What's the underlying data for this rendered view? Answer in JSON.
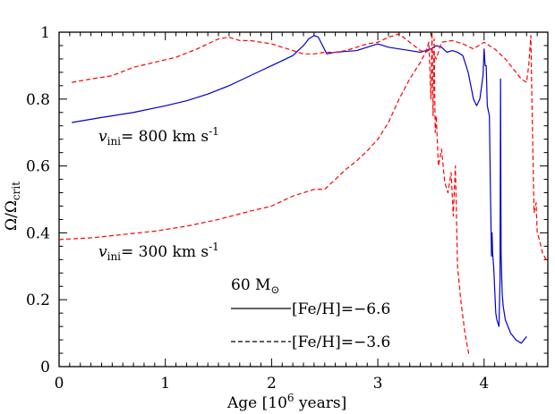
{
  "chart_data": {
    "type": "line",
    "xlabel_main": "Age [10",
    "xlabel_sup": "6",
    "xlabel_tail": " years]",
    "ylabel_main": "Ω/Ω",
    "ylabel_sub": "crit",
    "xlim": [
      0,
      4.6
    ],
    "ylim": [
      0,
      1.0
    ],
    "x_ticks": [
      0,
      1,
      2,
      3,
      4
    ],
    "x_tick_labels": [
      "0",
      "1",
      "2",
      "3",
      "4"
    ],
    "y_ticks": [
      0,
      0.2,
      0.4,
      0.6,
      0.8,
      1.0
    ],
    "y_tick_labels": [
      "0",
      "0.2",
      "0.4",
      "0.6",
      "0.8",
      "1"
    ],
    "annotations": {
      "vini_800": {
        "v": "v",
        "sub": "ini",
        "text": "= 800  km  s",
        "sup": "-1"
      },
      "vini_300": {
        "v": "v",
        "sub": "ini",
        "text": "= 300  km  s",
        "sup": "-1"
      },
      "mass": {
        "text": "60  M",
        "sub": "⊙"
      }
    },
    "legend": [
      {
        "label": "[Fe/H]=−6.6",
        "style": "solid"
      },
      {
        "label": "[Fe/H]=−3.6",
        "style": "dashed"
      }
    ],
    "series": [
      {
        "id": "feh66_800",
        "style": "solid",
        "color": "#0000cc",
        "x": [
          0.12,
          0.4,
          0.7,
          1.0,
          1.2,
          1.4,
          1.6,
          1.7,
          1.8,
          1.9,
          2.0,
          2.1,
          2.2,
          2.3,
          2.35,
          2.4,
          2.44,
          2.48,
          2.52,
          2.6,
          2.8,
          2.9,
          3.0,
          3.1,
          3.2,
          3.3,
          3.4,
          3.5,
          3.55,
          3.6,
          3.65,
          3.7,
          3.75,
          3.8,
          3.85,
          3.9,
          3.93,
          3.96,
          3.99,
          4.0,
          4.01,
          4.02,
          4.03,
          4.05,
          4.06,
          4.07,
          4.075,
          4.08,
          4.09,
          4.11,
          4.12,
          4.14,
          4.15,
          4.155,
          4.16,
          4.17,
          4.18,
          4.2,
          4.25,
          4.3,
          4.35,
          4.4
        ],
        "y": [
          0.73,
          0.745,
          0.76,
          0.78,
          0.795,
          0.815,
          0.84,
          0.855,
          0.87,
          0.885,
          0.9,
          0.915,
          0.93,
          0.96,
          0.98,
          0.99,
          0.985,
          0.96,
          0.935,
          0.94,
          0.945,
          0.955,
          0.965,
          0.955,
          0.95,
          0.945,
          0.94,
          0.95,
          0.96,
          0.955,
          0.94,
          0.945,
          0.94,
          0.93,
          0.88,
          0.8,
          0.78,
          0.8,
          0.87,
          0.95,
          0.9,
          0.9,
          0.78,
          0.75,
          0.52,
          0.33,
          0.4,
          0.34,
          0.3,
          0.16,
          0.14,
          0.12,
          0.26,
          0.86,
          0.34,
          0.22,
          0.18,
          0.14,
          0.1,
          0.08,
          0.07,
          0.09
        ]
      },
      {
        "id": "feh36_800",
        "style": "dashed",
        "color": "#ff0000",
        "x": [
          0.12,
          0.3,
          0.5,
          0.7,
          0.9,
          1.1,
          1.3,
          1.5,
          1.6,
          1.7,
          1.8,
          1.9,
          2.0,
          2.1,
          2.2,
          2.3,
          2.4,
          2.5,
          2.6,
          2.7,
          2.8,
          2.9,
          3.0,
          3.1,
          3.2,
          3.3,
          3.4,
          3.45,
          3.5,
          3.55,
          3.6,
          3.7,
          3.8,
          3.9,
          4.0,
          4.1,
          4.2,
          4.3,
          4.35,
          4.4,
          4.42,
          4.44,
          4.45,
          4.47,
          4.49,
          4.5,
          4.52,
          4.55,
          4.6
        ],
        "y": [
          0.85,
          0.86,
          0.87,
          0.895,
          0.91,
          0.925,
          0.95,
          0.98,
          0.985,
          0.975,
          0.975,
          0.97,
          0.965,
          0.955,
          0.945,
          0.935,
          0.935,
          0.94,
          0.94,
          0.945,
          0.955,
          0.965,
          0.97,
          0.985,
          0.995,
          0.97,
          0.945,
          0.94,
          0.95,
          0.92,
          0.97,
          0.975,
          0.965,
          0.95,
          0.97,
          0.95,
          0.92,
          0.88,
          0.86,
          0.85,
          0.9,
          0.99,
          0.8,
          0.46,
          0.49,
          0.4,
          0.38,
          0.34,
          0.31
        ]
      },
      {
        "id": "feh36_300",
        "style": "dashed",
        "color": "#ff0000",
        "x": [
          0.0,
          0.3,
          0.6,
          0.9,
          1.2,
          1.5,
          1.8,
          2.0,
          2.2,
          2.4,
          2.5,
          2.6,
          2.7,
          2.8,
          2.9,
          3.0,
          3.1,
          3.2,
          3.3,
          3.4,
          3.45,
          3.48,
          3.5,
          3.51,
          3.52,
          3.53,
          3.54,
          3.55,
          3.57,
          3.6,
          3.63,
          3.66,
          3.69,
          3.71,
          3.73,
          3.75,
          3.78,
          3.82,
          3.86
        ],
        "y": [
          0.38,
          0.385,
          0.395,
          0.405,
          0.42,
          0.44,
          0.465,
          0.48,
          0.51,
          0.53,
          0.53,
          0.56,
          0.59,
          0.615,
          0.645,
          0.68,
          0.73,
          0.8,
          0.86,
          0.91,
          0.94,
          0.97,
          0.8,
          1.0,
          0.75,
          0.98,
          0.7,
          0.75,
          0.6,
          0.65,
          0.55,
          0.52,
          0.58,
          0.45,
          0.6,
          0.3,
          0.2,
          0.1,
          0.03
        ]
      }
    ]
  }
}
